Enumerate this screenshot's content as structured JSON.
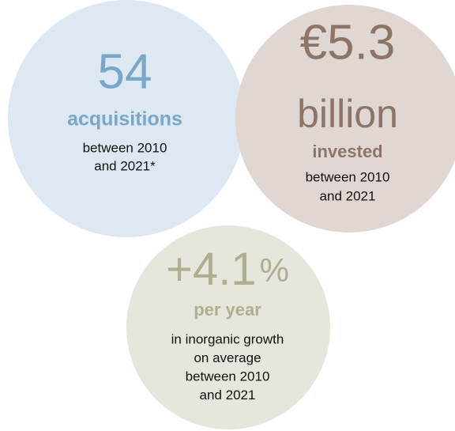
{
  "circles": [
    {
      "figure": "54",
      "label": "acquisitions",
      "lines": [
        "between 2010",
        "and 2021*"
      ]
    },
    {
      "figure": "€5.3",
      "figure_line2": "billion",
      "label": "invested",
      "lines": [
        "between 2010",
        "and 2021"
      ]
    },
    {
      "figure": "+4.1",
      "unit": "%",
      "label": "per year",
      "lines": [
        "in inorganic growth",
        "on average",
        "between 2010",
        "and 2021"
      ]
    }
  ]
}
